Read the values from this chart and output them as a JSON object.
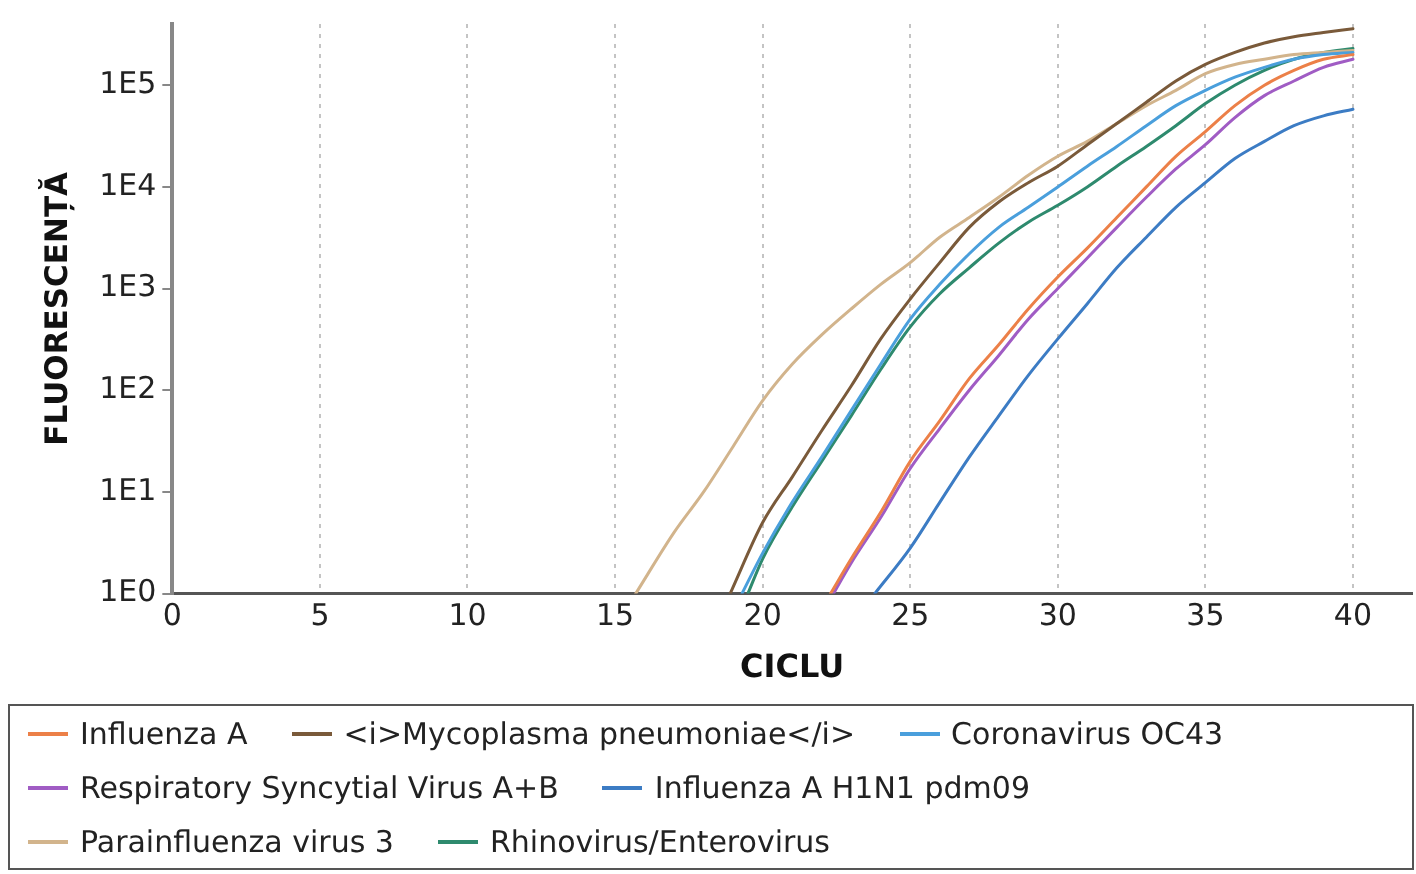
{
  "chart_data": {
    "type": "line",
    "xlabel": "CICLU",
    "ylabel": "FLUORESCENȚĂ",
    "xlim": [
      0,
      42
    ],
    "xticks": [
      0,
      5,
      10,
      15,
      20,
      25,
      30,
      35,
      40
    ],
    "ylim": [
      1,
      400000
    ],
    "yticks": [
      {
        "value": 1,
        "label": "1E0"
      },
      {
        "value": 10,
        "label": "1E1"
      },
      {
        "value": 100,
        "label": "1E2"
      },
      {
        "value": 1000,
        "label": "1E3"
      },
      {
        "value": 10000,
        "label": "1E4"
      },
      {
        "value": 100000,
        "label": "1E5"
      }
    ],
    "log": "y",
    "grid": "x",
    "legend": "bottom",
    "series": [
      {
        "name": "Influenza A",
        "color": "#ec8048",
        "x": [
          22.3,
          23,
          24,
          25,
          26,
          27,
          28,
          29,
          30,
          31,
          32,
          33,
          34,
          35,
          36,
          37,
          38,
          39,
          40
        ],
        "values": [
          1,
          2.2,
          6.3,
          20,
          50,
          130,
          280,
          630,
          1300,
          2500,
          5000,
          10000,
          20000,
          35000,
          63000,
          100000,
          140000,
          180000,
          200000
        ]
      },
      {
        "name": "<i>Mycoplasma pneumoniae</i>",
        "color": "#7a5a3a",
        "x": [
          18.9,
          20,
          21,
          22,
          23,
          24,
          25,
          26,
          27,
          28,
          29,
          30,
          31,
          32,
          33,
          34,
          35,
          36,
          37,
          38,
          39,
          40
        ],
        "values": [
          1,
          5.0,
          14,
          40,
          110,
          320,
          790,
          1800,
          4000,
          7100,
          11000,
          16000,
          26000,
          42000,
          68000,
          110000,
          160000,
          210000,
          260000,
          300000,
          330000,
          360000
        ]
      },
      {
        "name": "Coronavirus OC43",
        "color": "#4a9fdc",
        "x": [
          19.3,
          20,
          21,
          22,
          23,
          24,
          25,
          26,
          27,
          28,
          29,
          30,
          31,
          32,
          33,
          34,
          35,
          36,
          37,
          38,
          39,
          40
        ],
        "values": [
          1,
          2.5,
          7.9,
          22,
          63,
          180,
          500,
          1100,
          2200,
          4000,
          6300,
          10000,
          16000,
          25000,
          40000,
          63000,
          89000,
          120000,
          150000,
          180000,
          200000,
          210000
        ]
      },
      {
        "name": "Respiratory Syncytial Virus A+B",
        "color": "#a05cc4",
        "x": [
          22.4,
          23,
          24,
          25,
          26,
          27,
          28,
          29,
          30,
          31,
          32,
          33,
          34,
          35,
          36,
          37,
          38,
          39,
          40
        ],
        "values": [
          1,
          2.0,
          5.6,
          17,
          42,
          100,
          220,
          500,
          1000,
          2000,
          4000,
          7900,
          15000,
          26000,
          48000,
          79000,
          110000,
          150000,
          180000
        ]
      },
      {
        "name": "Influenza A H1N1 pdm09",
        "color": "#3c7cc4",
        "x": [
          23.8,
          25,
          26,
          27,
          28,
          29,
          30,
          31,
          32,
          33,
          34,
          35,
          36,
          37,
          38,
          39,
          40
        ],
        "values": [
          1,
          2.8,
          7.9,
          22,
          56,
          140,
          320,
          710,
          1600,
          3200,
          6300,
          11000,
          19000,
          28000,
          40000,
          50000,
          58000
        ]
      },
      {
        "name": "Parainfluenza virus 3",
        "color": "#d2b48c",
        "x": [
          15.7,
          17,
          18,
          19,
          20,
          21,
          22,
          23,
          24,
          25,
          26,
          27,
          28,
          29,
          30,
          31,
          32,
          33,
          34,
          35,
          36,
          37,
          38,
          39,
          40
        ],
        "values": [
          1,
          4.0,
          10,
          28,
          79,
          180,
          350,
          630,
          1100,
          1800,
          3200,
          5000,
          7900,
          13000,
          20000,
          28000,
          42000,
          63000,
          89000,
          130000,
          160000,
          180000,
          200000,
          210000,
          220000
        ]
      },
      {
        "name": "Rhinovirus/Enterovirus",
        "color": "#2e8a6e",
        "x": [
          19.5,
          20,
          21,
          22,
          23,
          24,
          25,
          26,
          27,
          28,
          29,
          30,
          31,
          32,
          33,
          34,
          35,
          36,
          37,
          38,
          39,
          40
        ],
        "values": [
          1,
          2.2,
          7.1,
          20,
          56,
          160,
          420,
          890,
          1600,
          2800,
          4500,
          6600,
          10000,
          16000,
          25000,
          40000,
          66000,
          100000,
          140000,
          180000,
          210000,
          230000
        ]
      }
    ]
  }
}
